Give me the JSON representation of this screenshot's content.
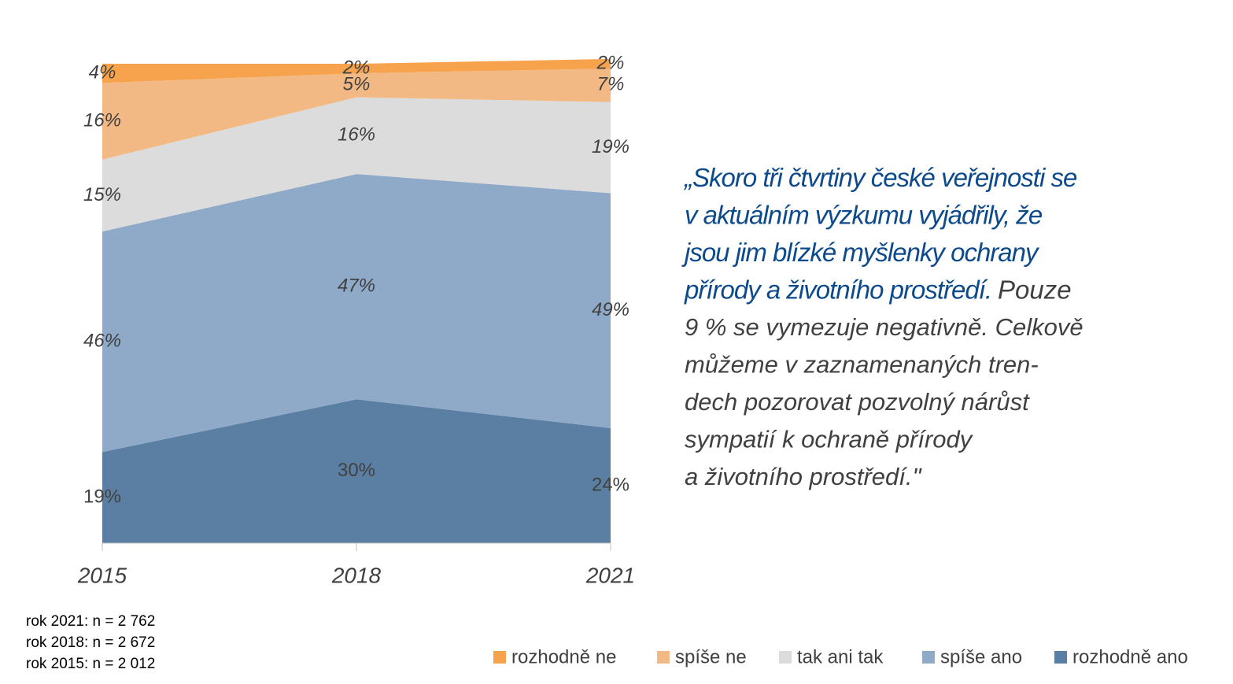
{
  "chart_data": {
    "type": "stacked-area",
    "categories": [
      "2015",
      "2018",
      "2021"
    ],
    "ylim": [
      0,
      100
    ],
    "series": [
      {
        "name": "rozhodně ano",
        "color": "#5b7fa3",
        "values": [
          19,
          30,
          24
        ],
        "value_labels": [
          "19%",
          "30%",
          "24%"
        ]
      },
      {
        "name": "spíše ano",
        "color": "#8faac8",
        "values": [
          46,
          47,
          49
        ],
        "value_labels": [
          "46%",
          "47%",
          "49%"
        ]
      },
      {
        "name": "tak ani tak",
        "color": "#dcdcdc",
        "values": [
          15,
          16,
          19
        ],
        "value_labels": [
          "15%",
          "16%",
          "19%"
        ]
      },
      {
        "name": "spíše ne",
        "color": "#f3b984",
        "values": [
          16,
          5,
          7
        ],
        "value_labels": [
          "16%",
          "5%",
          "7%"
        ]
      },
      {
        "name": "rozhodně ne",
        "color": "#f7a24c",
        "values": [
          4,
          2,
          2
        ],
        "value_labels": [
          "4%",
          "2%",
          "2%"
        ]
      }
    ],
    "notes": [
      "rok 2021: n = 2 762",
      "rok 2018: n = 2 672",
      "rok 2015: n = 2 012"
    ],
    "quote": {
      "highlighted": [
        "„Skoro tři čtvrtiny české veřejnosti se",
        "v aktuálním výzkumu vyjádřily, že",
        "jsou jim blízké myšlenky ochrany",
        "přírody a životního prostředí."
      ],
      "plain": [
        "Pouze",
        "9 % se vymezuje negativně. Celkově",
        "můžeme v zaznamenaných tren-",
        "dech pozorovat pozvolný nárůst",
        "sympatií k ochraně přírody",
        "a životního prostředí.\""
      ]
    }
  }
}
